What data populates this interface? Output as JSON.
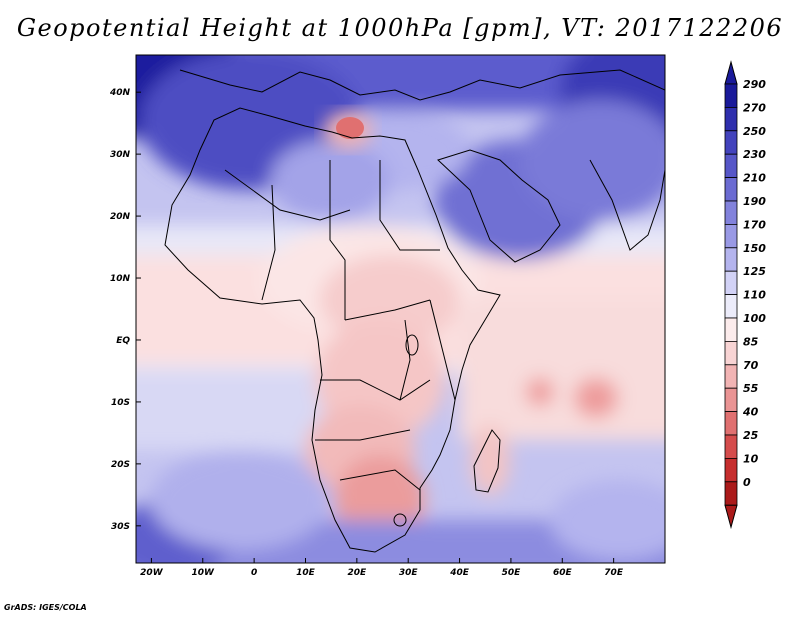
{
  "title": "Geopotential Height at 1000hPa [gpm], VT: 2017122206",
  "credit": "GrADS: IGES/COLA",
  "map": {
    "projection": "lat-lon",
    "lon_range": [
      -23,
      80
    ],
    "lat_range": [
      -36,
      46
    ],
    "lon_ticks": [
      {
        "value": -20,
        "label": "20W"
      },
      {
        "value": -10,
        "label": "10W"
      },
      {
        "value": 0,
        "label": "0"
      },
      {
        "value": 10,
        "label": "10E"
      },
      {
        "value": 20,
        "label": "20E"
      },
      {
        "value": 30,
        "label": "30E"
      },
      {
        "value": 40,
        "label": "40E"
      },
      {
        "value": 50,
        "label": "50E"
      },
      {
        "value": 60,
        "label": "60E"
      },
      {
        "value": 70,
        "label": "70E"
      }
    ],
    "lat_ticks": [
      {
        "value": 40,
        "label": "40N"
      },
      {
        "value": 30,
        "label": "30N"
      },
      {
        "value": 20,
        "label": "20N"
      },
      {
        "value": 10,
        "label": "10N"
      },
      {
        "value": 0,
        "label": "EQ"
      },
      {
        "value": -10,
        "label": "10S"
      },
      {
        "value": -20,
        "label": "20S"
      },
      {
        "value": -30,
        "label": "30S"
      }
    ]
  },
  "colorbar": {
    "levels": [
      "290",
      "270",
      "250",
      "230",
      "210",
      "190",
      "170",
      "150",
      "125",
      "110",
      "100",
      "85",
      "70",
      "55",
      "40",
      "25",
      "10",
      "0"
    ],
    "colors": [
      "#1a1a9a",
      "#2f2fad",
      "#4343bd",
      "#5656c8",
      "#6b6bd2",
      "#8282dc",
      "#9999e5",
      "#b4b4ee",
      "#d2d2f6",
      "#ececfa",
      "#fcecec",
      "#f8d4d4",
      "#f2b4b4",
      "#ea9494",
      "#e07070",
      "#d54c4c",
      "#c62e2e",
      "#ab1a1a"
    ]
  }
}
